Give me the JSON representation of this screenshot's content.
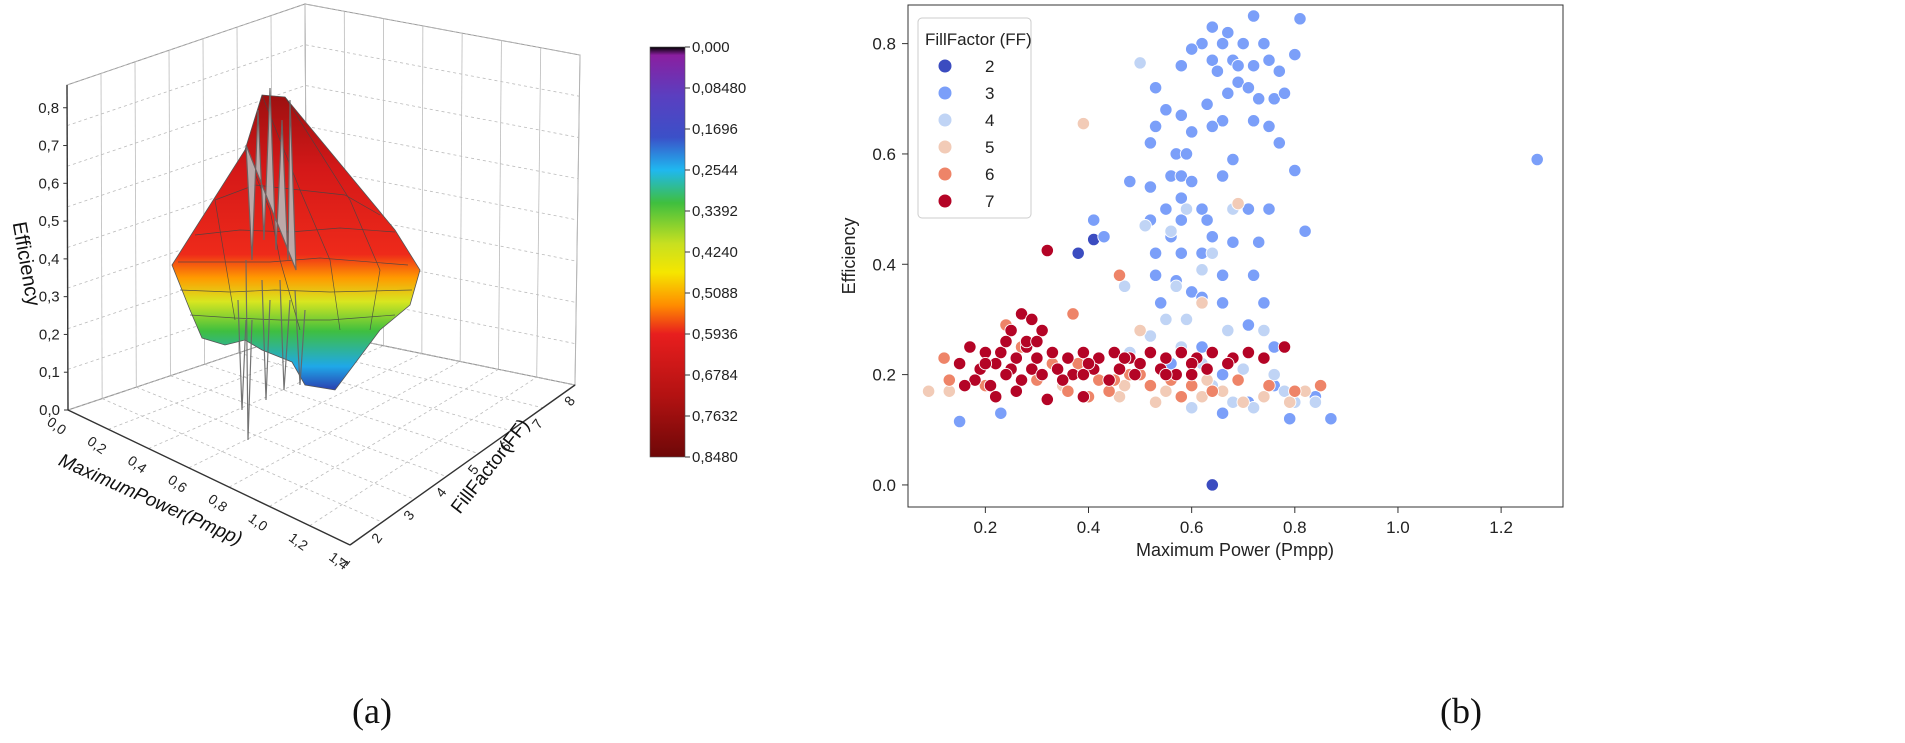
{
  "panels": {
    "a_label": "(a)",
    "b_label": "(b)"
  },
  "chart_data": [
    {
      "type": "surface3d",
      "title": "",
      "xlabel": "MaximumPower(Pmpp)",
      "ylabel": "FillFactor(FF)",
      "zlabel": "Efficiency",
      "x_ticks": [
        "0,0",
        "0,2",
        "0,4",
        "0,6",
        "0,8",
        "1,0",
        "1,2",
        "1,4"
      ],
      "y_ticks": [
        "1",
        "2",
        "3",
        "4",
        "5",
        "6",
        "7",
        "8"
      ],
      "z_ticks": [
        "0,0",
        "0,1",
        "0,2",
        "0,3",
        "0,4",
        "0,5",
        "0,6",
        "0,7",
        "0,8"
      ],
      "xlim": [
        0,
        1.4
      ],
      "ylim": [
        1,
        8
      ],
      "zlim": [
        0,
        0.8
      ],
      "colorbar": {
        "labels": [
          "0,000",
          "0,08480",
          "0,1696",
          "0,2544",
          "0,3392",
          "0,4240",
          "0,5088",
          "0,5936",
          "0,6784",
          "0,7632",
          "0,8480"
        ],
        "range": [
          0,
          0.848
        ],
        "colors": [
          "#000000",
          "#8a1fa0",
          "#3b50c8",
          "#1fb8f0",
          "#3fbf3f",
          "#c8e020",
          "#f5e600",
          "#ff8c00",
          "#e81e1e",
          "#b31212",
          "#6e0808"
        ]
      }
    },
    {
      "type": "scatter",
      "title": "",
      "xlabel": "Maximum Power (Pmpp)",
      "ylabel": "Efficiency",
      "xlim": [
        0.05,
        1.32
      ],
      "ylim": [
        -0.04,
        0.87
      ],
      "x_ticks": [
        "0.2",
        "0.4",
        "0.6",
        "0.8",
        "1.0",
        "1.2"
      ],
      "y_ticks": [
        "0.0",
        "0.2",
        "0.4",
        "0.6",
        "0.8"
      ],
      "legend": {
        "title": "FillFactor (FF)",
        "position": "top-left",
        "entries": [
          {
            "label": "2",
            "color": "#3b4cc0"
          },
          {
            "label": "3",
            "color": "#7b9ff9"
          },
          {
            "label": "4",
            "color": "#c0d4f5"
          },
          {
            "label": "5",
            "color": "#f2cbb7"
          },
          {
            "label": "6",
            "color": "#ee8468"
          },
          {
            "label": "7",
            "color": "#b40426"
          }
        ]
      },
      "series": [
        {
          "name": "2",
          "color": "#3b4cc0",
          "points": [
            [
              0.38,
              0.42
            ],
            [
              0.41,
              0.445
            ],
            [
              0.64,
              0.0
            ]
          ]
        },
        {
          "name": "3",
          "color": "#7b9ff9",
          "points": [
            [
              0.64,
              0.83
            ],
            [
              0.67,
              0.82
            ],
            [
              0.72,
              0.85
            ],
            [
              0.81,
              0.845
            ],
            [
              0.62,
              0.8
            ],
            [
              0.66,
              0.8
            ],
            [
              0.7,
              0.8
            ],
            [
              0.74,
              0.8
            ],
            [
              0.6,
              0.79
            ],
            [
              0.64,
              0.77
            ],
            [
              0.68,
              0.77
            ],
            [
              0.75,
              0.77
            ],
            [
              0.8,
              0.78
            ],
            [
              0.58,
              0.76
            ],
            [
              0.65,
              0.75
            ],
            [
              0.69,
              0.76
            ],
            [
              0.72,
              0.76
            ],
            [
              0.77,
              0.75
            ],
            [
              0.69,
              0.73
            ],
            [
              0.71,
              0.72
            ],
            [
              0.67,
              0.71
            ],
            [
              0.76,
              0.7
            ],
            [
              0.63,
              0.69
            ],
            [
              0.73,
              0.7
            ],
            [
              0.78,
              0.71
            ],
            [
              0.53,
              0.72
            ],
            [
              0.55,
              0.68
            ],
            [
              0.58,
              0.67
            ],
            [
              0.66,
              0.66
            ],
            [
              0.72,
              0.66
            ],
            [
              0.75,
              0.65
            ],
            [
              0.53,
              0.65
            ],
            [
              0.6,
              0.64
            ],
            [
              0.64,
              0.65
            ],
            [
              0.77,
              0.62
            ],
            [
              0.57,
              0.6
            ],
            [
              0.59,
              0.6
            ],
            [
              0.52,
              0.62
            ],
            [
              0.68,
              0.59
            ],
            [
              0.56,
              0.56
            ],
            [
              0.58,
              0.56
            ],
            [
              0.52,
              0.54
            ],
            [
              0.6,
              0.55
            ],
            [
              0.66,
              0.56
            ],
            [
              0.8,
              0.57
            ],
            [
              0.48,
              0.55
            ],
            [
              0.55,
              0.5
            ],
            [
              0.58,
              0.52
            ],
            [
              0.62,
              0.5
            ],
            [
              0.71,
              0.5
            ],
            [
              0.75,
              0.5
            ],
            [
              0.63,
              0.48
            ],
            [
              0.52,
              0.48
            ],
            [
              0.58,
              0.48
            ],
            [
              0.56,
              0.45
            ],
            [
              0.64,
              0.45
            ],
            [
              0.68,
              0.44
            ],
            [
              0.73,
              0.44
            ],
            [
              0.58,
              0.42
            ],
            [
              0.62,
              0.42
            ],
            [
              0.53,
              0.42
            ],
            [
              0.82,
              0.46
            ],
            [
              0.53,
              0.38
            ],
            [
              0.57,
              0.37
            ],
            [
              0.66,
              0.38
            ],
            [
              0.72,
              0.38
            ],
            [
              0.6,
              0.35
            ],
            [
              0.62,
              0.34
            ],
            [
              0.54,
              0.33
            ],
            [
              0.66,
              0.33
            ],
            [
              0.74,
              0.33
            ],
            [
              0.71,
              0.29
            ],
            [
              0.76,
              0.25
            ],
            [
              0.62,
              0.25
            ],
            [
              0.56,
              0.22
            ],
            [
              0.66,
              0.2
            ],
            [
              0.76,
              0.18
            ],
            [
              0.84,
              0.16
            ],
            [
              0.23,
              0.13
            ],
            [
              0.15,
              0.115
            ],
            [
              0.66,
              0.13
            ],
            [
              0.71,
              0.15
            ],
            [
              0.79,
              0.12
            ],
            [
              0.87,
              0.12
            ],
            [
              1.27,
              0.59
            ],
            [
              0.41,
              0.48
            ],
            [
              0.43,
              0.45
            ]
          ]
        },
        {
          "name": "4",
          "color": "#c0d4f5",
          "points": [
            [
              0.5,
              0.765
            ],
            [
              0.68,
              0.5
            ],
            [
              0.59,
              0.5
            ],
            [
              0.64,
              0.42
            ],
            [
              0.51,
              0.47
            ],
            [
              0.56,
              0.46
            ],
            [
              0.62,
              0.39
            ],
            [
              0.57,
              0.36
            ],
            [
              0.47,
              0.36
            ],
            [
              0.55,
              0.3
            ],
            [
              0.59,
              0.3
            ],
            [
              0.67,
              0.28
            ],
            [
              0.74,
              0.28
            ],
            [
              0.52,
              0.27
            ],
            [
              0.58,
              0.25
            ],
            [
              0.48,
              0.24
            ],
            [
              0.62,
              0.22
            ],
            [
              0.7,
              0.21
            ],
            [
              0.76,
              0.2
            ],
            [
              0.64,
              0.18
            ],
            [
              0.8,
              0.15
            ],
            [
              0.55,
              0.17
            ],
            [
              0.68,
              0.15
            ],
            [
              0.6,
              0.14
            ],
            [
              0.72,
              0.14
            ],
            [
              0.78,
              0.17
            ],
            [
              0.84,
              0.15
            ]
          ]
        },
        {
          "name": "5",
          "color": "#f2cbb7",
          "points": [
            [
              0.39,
              0.655
            ],
            [
              0.69,
              0.51
            ],
            [
              0.62,
              0.33
            ],
            [
              0.5,
              0.28
            ],
            [
              0.46,
              0.16
            ],
            [
              0.53,
              0.15
            ],
            [
              0.58,
              0.16
            ],
            [
              0.62,
              0.16
            ],
            [
              0.66,
              0.17
            ],
            [
              0.7,
              0.15
            ],
            [
              0.74,
              0.16
            ],
            [
              0.79,
              0.15
            ],
            [
              0.82,
              0.17
            ],
            [
              0.09,
              0.17
            ],
            [
              0.13,
              0.17
            ],
            [
              0.35,
              0.18
            ],
            [
              0.47,
              0.18
            ],
            [
              0.55,
              0.17
            ],
            [
              0.63,
              0.19
            ]
          ]
        },
        {
          "name": "6",
          "color": "#ee8468",
          "points": [
            [
              0.46,
              0.38
            ],
            [
              0.37,
              0.31
            ],
            [
              0.24,
              0.29
            ],
            [
              0.27,
              0.25
            ],
            [
              0.33,
              0.22
            ],
            [
              0.38,
              0.22
            ],
            [
              0.42,
              0.19
            ],
            [
              0.45,
              0.19
            ],
            [
              0.48,
              0.2
            ],
            [
              0.52,
              0.18
            ],
            [
              0.56,
              0.19
            ],
            [
              0.6,
              0.18
            ],
            [
              0.64,
              0.17
            ],
            [
              0.69,
              0.19
            ],
            [
              0.75,
              0.18
            ],
            [
              0.8,
              0.17
            ],
            [
              0.85,
              0.18
            ],
            [
              0.3,
              0.19
            ],
            [
              0.36,
              0.17
            ],
            [
              0.4,
              0.16
            ],
            [
              0.44,
              0.17
            ],
            [
              0.5,
              0.2
            ],
            [
              0.58,
              0.16
            ],
            [
              0.13,
              0.19
            ],
            [
              0.12,
              0.23
            ],
            [
              0.2,
              0.18
            ]
          ]
        },
        {
          "name": "7",
          "color": "#b40426",
          "points": [
            [
              0.32,
              0.425
            ],
            [
              0.27,
              0.31
            ],
            [
              0.29,
              0.3
            ],
            [
              0.25,
              0.28
            ],
            [
              0.31,
              0.28
            ],
            [
              0.17,
              0.25
            ],
            [
              0.2,
              0.24
            ],
            [
              0.23,
              0.24
            ],
            [
              0.26,
              0.23
            ],
            [
              0.28,
              0.25
            ],
            [
              0.3,
              0.23
            ],
            [
              0.33,
              0.24
            ],
            [
              0.36,
              0.23
            ],
            [
              0.39,
              0.24
            ],
            [
              0.42,
              0.23
            ],
            [
              0.45,
              0.24
            ],
            [
              0.48,
              0.23
            ],
            [
              0.52,
              0.24
            ],
            [
              0.55,
              0.23
            ],
            [
              0.58,
              0.24
            ],
            [
              0.61,
              0.23
            ],
            [
              0.64,
              0.24
            ],
            [
              0.68,
              0.23
            ],
            [
              0.71,
              0.24
            ],
            [
              0.74,
              0.23
            ],
            [
              0.78,
              0.25
            ],
            [
              0.15,
              0.22
            ],
            [
              0.19,
              0.21
            ],
            [
              0.22,
              0.22
            ],
            [
              0.25,
              0.21
            ],
            [
              0.29,
              0.21
            ],
            [
              0.34,
              0.21
            ],
            [
              0.37,
              0.2
            ],
            [
              0.41,
              0.21
            ],
            [
              0.46,
              0.21
            ],
            [
              0.5,
              0.22
            ],
            [
              0.54,
              0.21
            ],
            [
              0.57,
              0.2
            ],
            [
              0.6,
              0.22
            ],
            [
              0.63,
              0.21
            ],
            [
              0.67,
              0.22
            ],
            [
              0.18,
              0.19
            ],
            [
              0.21,
              0.18
            ],
            [
              0.24,
              0.2
            ],
            [
              0.27,
              0.19
            ],
            [
              0.31,
              0.2
            ],
            [
              0.35,
              0.19
            ],
            [
              0.39,
              0.2
            ],
            [
              0.44,
              0.19
            ],
            [
              0.49,
              0.2
            ],
            [
              0.55,
              0.2
            ],
            [
              0.6,
              0.2
            ],
            [
              0.32,
              0.155
            ],
            [
              0.39,
              0.16
            ],
            [
              0.26,
              0.17
            ],
            [
              0.22,
              0.16
            ],
            [
              0.28,
              0.26
            ],
            [
              0.3,
              0.26
            ],
            [
              0.24,
              0.26
            ],
            [
              0.2,
              0.22
            ],
            [
              0.16,
              0.18
            ],
            [
              0.4,
              0.22
            ],
            [
              0.47,
              0.23
            ]
          ]
        }
      ]
    }
  ]
}
